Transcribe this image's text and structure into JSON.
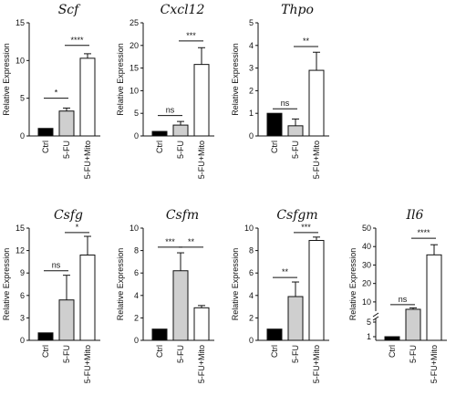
{
  "chart_data": [
    {
      "type": "bar",
      "title": "Scf",
      "ylabel": "Relative Expression",
      "categories": [
        "Ctrl",
        "5-FU",
        "5-FU+Mito"
      ],
      "values": [
        1.0,
        3.3,
        10.3
      ],
      "errors": [
        0.0,
        0.4,
        0.6
      ],
      "colors": [
        "#000000",
        "#cfcfcf",
        "#ffffff"
      ],
      "ylim": [
        0,
        15
      ],
      "yticks": [
        "0",
        "5",
        "10",
        "15"
      ],
      "significance": [
        {
          "from": 0,
          "to": 1,
          "label": "*",
          "y": 5.0
        },
        {
          "from": 1,
          "to": 2,
          "label": "****",
          "y": 12.0
        }
      ]
    },
    {
      "type": "bar",
      "title": "Cxcl12",
      "ylabel": "Relative Expression",
      "categories": [
        "Ctrl",
        "5-FU",
        "5-FU+Mito"
      ],
      "values": [
        1.0,
        2.4,
        15.8
      ],
      "errors": [
        0.0,
        0.8,
        3.7
      ],
      "colors": [
        "#000000",
        "#cfcfcf",
        "#ffffff"
      ],
      "ylim": [
        0,
        25
      ],
      "yticks": [
        "0",
        "5",
        "10",
        "15",
        "20",
        "25"
      ],
      "significance": [
        {
          "from": 0,
          "to": 1,
          "label": "ns",
          "y": 4.5
        },
        {
          "from": 1,
          "to": 2,
          "label": "***",
          "y": 21.0
        }
      ]
    },
    {
      "type": "bar",
      "title": "Thpo",
      "ylabel": "Relative Expression",
      "categories": [
        "Ctrl",
        "5-FU",
        "5-FU+Mito"
      ],
      "values": [
        1.0,
        0.45,
        2.9
      ],
      "errors": [
        0.0,
        0.3,
        0.8
      ],
      "colors": [
        "#000000",
        "#cfcfcf",
        "#ffffff"
      ],
      "ylim": [
        0,
        5
      ],
      "yticks": [
        "0",
        "1",
        "2",
        "3",
        "4",
        "5"
      ],
      "significance": [
        {
          "from": 0,
          "to": 1,
          "label": "ns",
          "y": 1.2
        },
        {
          "from": 1,
          "to": 2,
          "label": "**",
          "y": 3.95
        }
      ]
    },
    {
      "type": "bar",
      "title": "Csfg",
      "ylabel": "Relative Expression",
      "categories": [
        "Ctrl",
        "5-FU",
        "5-FU+Mito"
      ],
      "values": [
        1.0,
        5.4,
        11.4
      ],
      "errors": [
        0.0,
        3.3,
        2.5
      ],
      "colors": [
        "#000000",
        "#cfcfcf",
        "#ffffff"
      ],
      "ylim": [
        0,
        15
      ],
      "yticks": [
        "0",
        "3",
        "6",
        "9",
        "12",
        "15"
      ],
      "significance": [
        {
          "from": 0,
          "to": 1,
          "label": "ns",
          "y": 9.3
        },
        {
          "from": 1,
          "to": 2,
          "label": "*",
          "y": 14.4
        }
      ]
    },
    {
      "type": "bar",
      "title": "Csfm",
      "ylabel": "Relative Expression",
      "categories": [
        "Ctrl",
        "5-FU",
        "5-FU+Mito"
      ],
      "values": [
        1.0,
        6.2,
        2.9
      ],
      "errors": [
        0.0,
        1.6,
        0.2
      ],
      "colors": [
        "#000000",
        "#cfcfcf",
        "#ffffff"
      ],
      "ylim": [
        0,
        10
      ],
      "yticks": [
        "0",
        "2",
        "4",
        "6",
        "8",
        "10"
      ],
      "significance": [
        {
          "from": 0,
          "to": 1,
          "label": "***",
          "y": 8.3
        },
        {
          "from": 1,
          "to": 2,
          "label": "**",
          "y": 8.3
        }
      ]
    },
    {
      "type": "bar",
      "title": "Csfgm",
      "ylabel": "Relative Expression",
      "categories": [
        "Ctrl",
        "5-FU",
        "5-FU+Mito"
      ],
      "values": [
        1.0,
        3.9,
        8.9
      ],
      "errors": [
        0.0,
        1.3,
        0.3
      ],
      "colors": [
        "#000000",
        "#cfcfcf",
        "#ffffff"
      ],
      "ylim": [
        0,
        10
      ],
      "yticks": [
        "0",
        "2",
        "4",
        "6",
        "8",
        "10"
      ],
      "significance": [
        {
          "from": 0,
          "to": 1,
          "label": "**",
          "y": 5.6
        },
        {
          "from": 1,
          "to": 2,
          "label": "***",
          "y": 9.6
        }
      ]
    },
    {
      "type": "bar",
      "title": "Il6",
      "ylabel": "Relative Expression",
      "categories": [
        "Ctrl",
        "5-FU",
        "5-FU+Mito"
      ],
      "values": [
        1.0,
        6.0,
        35.5
      ],
      "errors": [
        0.0,
        0.8,
        5.5
      ],
      "colors": [
        "#000000",
        "#cfcfcf",
        "#ffffff"
      ],
      "ylim": [
        0,
        50
      ],
      "yticks": [
        "1",
        "5",
        "10",
        "20",
        "30",
        "40",
        "50"
      ],
      "axis_break": true,
      "significance": [
        {
          "from": 0,
          "to": 1,
          "label": "ns",
          "y": 8.5
        },
        {
          "from": 1,
          "to": 2,
          "label": "****",
          "y": 44.5
        }
      ]
    }
  ]
}
